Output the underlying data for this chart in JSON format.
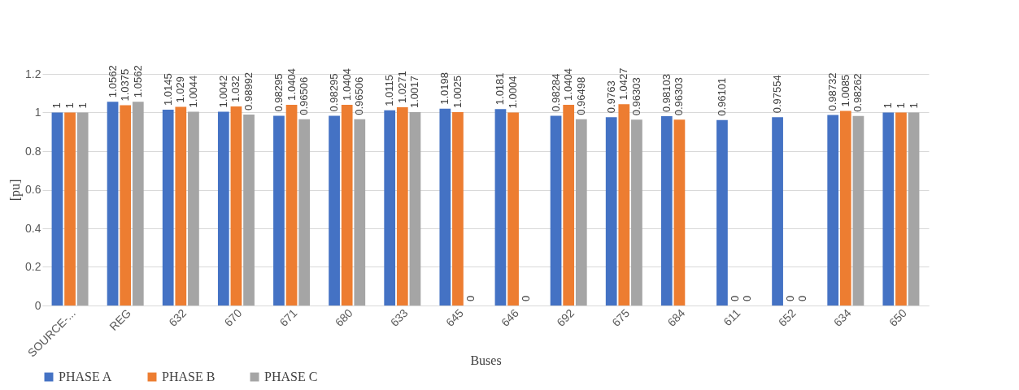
{
  "chart_data": {
    "type": "bar",
    "xlabel": "Buses",
    "ylabel": "[pu]",
    "categories": [
      "SOURCE-...",
      "REG",
      "632",
      "670",
      "671",
      "680",
      "633",
      "645",
      "646",
      "692",
      "675",
      "684",
      "611",
      "652",
      "634",
      "650"
    ],
    "series": [
      {
        "name": "PHASE A",
        "color": "#4472c4",
        "values": [
          1,
          1.0562,
          1.0145,
          1.0042,
          0.98295,
          0.98295,
          1.0115,
          1.0198,
          1.0181,
          0.98284,
          0.9763,
          0.98103,
          0.96101,
          0.97554,
          0.98732,
          1
        ]
      },
      {
        "name": "PHASE B",
        "color": "#ed7d31",
        "values": [
          1,
          1.0375,
          1.029,
          1.032,
          1.0404,
          1.0404,
          1.0271,
          1.0025,
          1.0004,
          1.0404,
          1.0427,
          0.96303,
          0,
          0,
          1.0085,
          1
        ]
      },
      {
        "name": "PHASE C",
        "color": "#a5a5a5",
        "values": [
          1,
          1.0562,
          1.0044,
          0.98992,
          0.96506,
          0.96506,
          1.0017,
          0,
          0,
          0.96498,
          0.96303,
          null,
          0,
          0,
          0.98262,
          1
        ]
      }
    ],
    "ylim": [
      0,
      1.2
    ],
    "yticks": [
      0,
      0.2,
      0.4,
      0.6,
      0.8,
      1,
      1.2
    ],
    "grid": "y",
    "legend": "bottom",
    "data_labels": true
  }
}
